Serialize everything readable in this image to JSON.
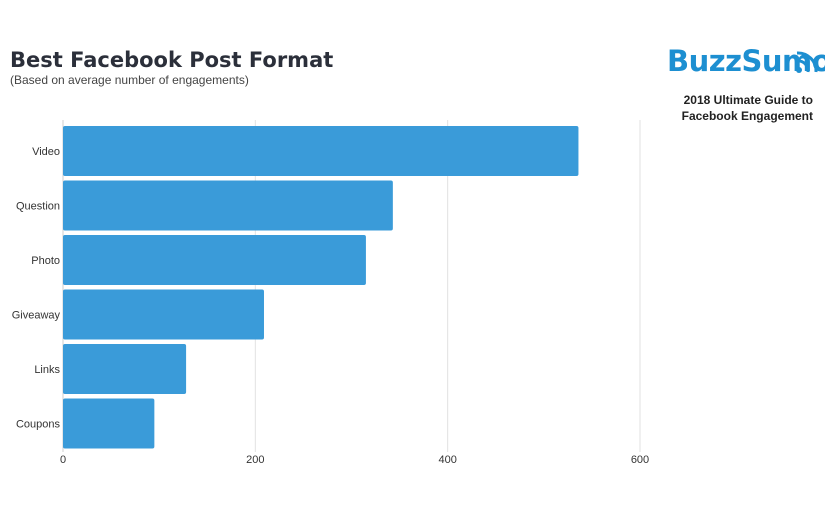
{
  "header": {
    "title": "Best Facebook Post Format",
    "subtitle": "(Based on average number of engagements)",
    "brand": "BuzzSumo",
    "guide_line1": "2018 Ultimate Guide to",
    "guide_line2": "Facebook Engagement"
  },
  "colors": {
    "bar": "#3a9bd9",
    "grid": "#e2e2e2",
    "brand": "#1d8fd1"
  },
  "chart_data": {
    "type": "bar",
    "orientation": "horizontal",
    "title": "Best Facebook Post Format",
    "subtitle": "(Based on average number of engagements)",
    "categories": [
      "Video",
      "Question",
      "Photo",
      "Giveaway",
      "Links",
      "Coupons"
    ],
    "values": [
      536,
      343,
      315,
      209,
      128,
      95
    ],
    "xlim": [
      0,
      800
    ],
    "xticks": [
      0,
      200,
      400,
      600
    ],
    "grid": true
  }
}
